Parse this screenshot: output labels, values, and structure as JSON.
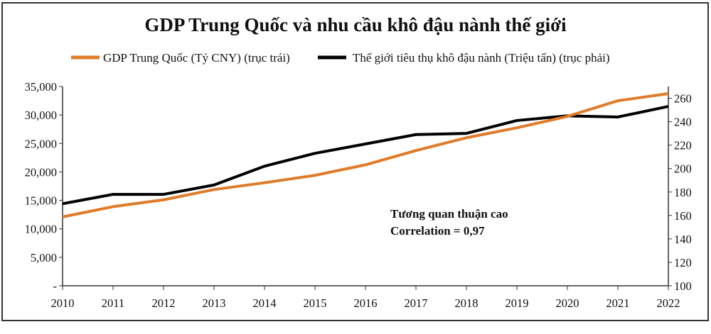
{
  "chart_data": {
    "type": "line",
    "title": "GDP Trung Quốc và nhu cầu khô đậu  nành thế giới",
    "x": [
      2010,
      2011,
      2012,
      2013,
      2014,
      2015,
      2016,
      2017,
      2018,
      2019,
      2020,
      2021,
      2022
    ],
    "x_tick_labels": [
      "2010",
      "2011",
      "2012",
      "2013",
      "2014",
      "2015",
      "2016",
      "2017",
      "2018",
      "2019",
      "2020",
      "2021",
      "2022"
    ],
    "series": [
      {
        "name": "GDP Trung Quốc (Tỷ CNY) (trục trái)",
        "axis": "left",
        "color": "#e07b2a",
        "values": [
          12100,
          13900,
          15100,
          16900,
          18100,
          19400,
          21250,
          23750,
          26000,
          27750,
          29750,
          32500,
          33750
        ]
      },
      {
        "name": "Thế giới tiêu thụ khô đậu nành  (Triệu tấn) (trục phải)",
        "axis": "right",
        "color": "#000000",
        "values": [
          170,
          178,
          178,
          186,
          202,
          213,
          221,
          229,
          230,
          241,
          245,
          244,
          253
        ]
      }
    ],
    "left_axis": {
      "ylim": [
        0,
        35000
      ],
      "ticks": [
        0,
        5000,
        10000,
        15000,
        20000,
        25000,
        30000,
        35000
      ],
      "tick_labels": [
        "-",
        "5,000",
        "10,000",
        "15,000",
        "20,000",
        "25,000",
        "30,000",
        "35,000"
      ]
    },
    "right_axis": {
      "ylim": [
        100,
        270
      ],
      "ticks": [
        100,
        120,
        140,
        160,
        180,
        200,
        220,
        240,
        260
      ],
      "tick_labels": [
        "100",
        "120",
        "140",
        "160",
        "180",
        "200",
        "220",
        "240",
        "260"
      ]
    },
    "legend_placement": "top-center",
    "grid": false,
    "annotations": [
      "Tương quan thuận cao",
      "Correlation = 0,97"
    ]
  }
}
